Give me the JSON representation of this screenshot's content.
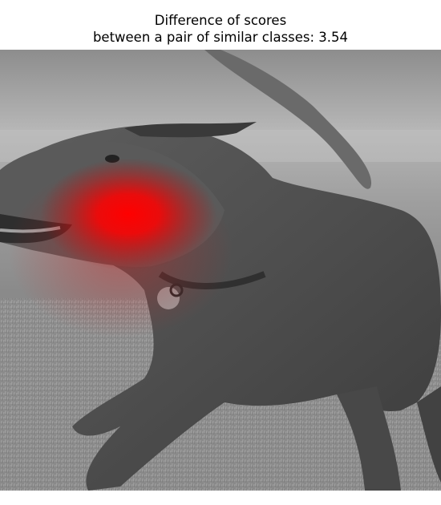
{
  "title": {
    "line1": "Difference of scores",
    "line2": "between a pair of similar classes: 3.54"
  },
  "image": {
    "subject": "grayscale photo of a running dog with a red saliency heatmap over its mouth and neck",
    "heatmap_color": "#ff0000"
  }
}
